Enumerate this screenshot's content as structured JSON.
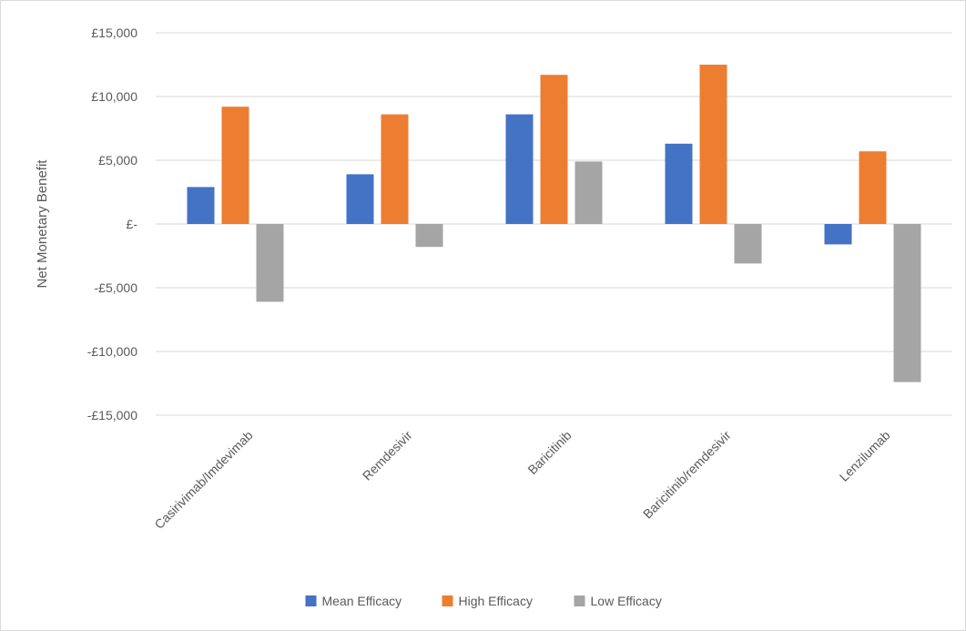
{
  "chart_data": {
    "type": "bar",
    "ylabel": "Net Monetary Benefit",
    "xlabel": "",
    "ylim": [
      -15000,
      15000
    ],
    "y_ticks": [
      {
        "value": 15000,
        "label": "£15,000"
      },
      {
        "value": 10000,
        "label": "£10,000"
      },
      {
        "value": 5000,
        "label": "£5,000"
      },
      {
        "value": 0,
        "label": "£-"
      },
      {
        "value": -5000,
        "label": "-£5,000"
      },
      {
        "value": -10000,
        "label": "-£10,000"
      },
      {
        "value": -15000,
        "label": "-£15,000"
      }
    ],
    "grid": true,
    "legend_position": "bottom",
    "categories": [
      "Casirivimab/Imdevimab",
      "Remdesivir",
      "Baricitinib",
      "Baricitinib/remdesivir",
      "Lenzilumab"
    ],
    "series": [
      {
        "name": "Mean Efficacy",
        "color": "#4472c4",
        "values": [
          2900,
          3900,
          8600,
          6300,
          -1600
        ]
      },
      {
        "name": "High Efficacy",
        "color": "#ed7d31",
        "values": [
          9200,
          8600,
          11700,
          12500,
          5700
        ]
      },
      {
        "name": "Low Efficacy",
        "color": "#a5a5a5",
        "values": [
          -6100,
          -1800,
          4900,
          -3100,
          -12400
        ]
      }
    ]
  }
}
